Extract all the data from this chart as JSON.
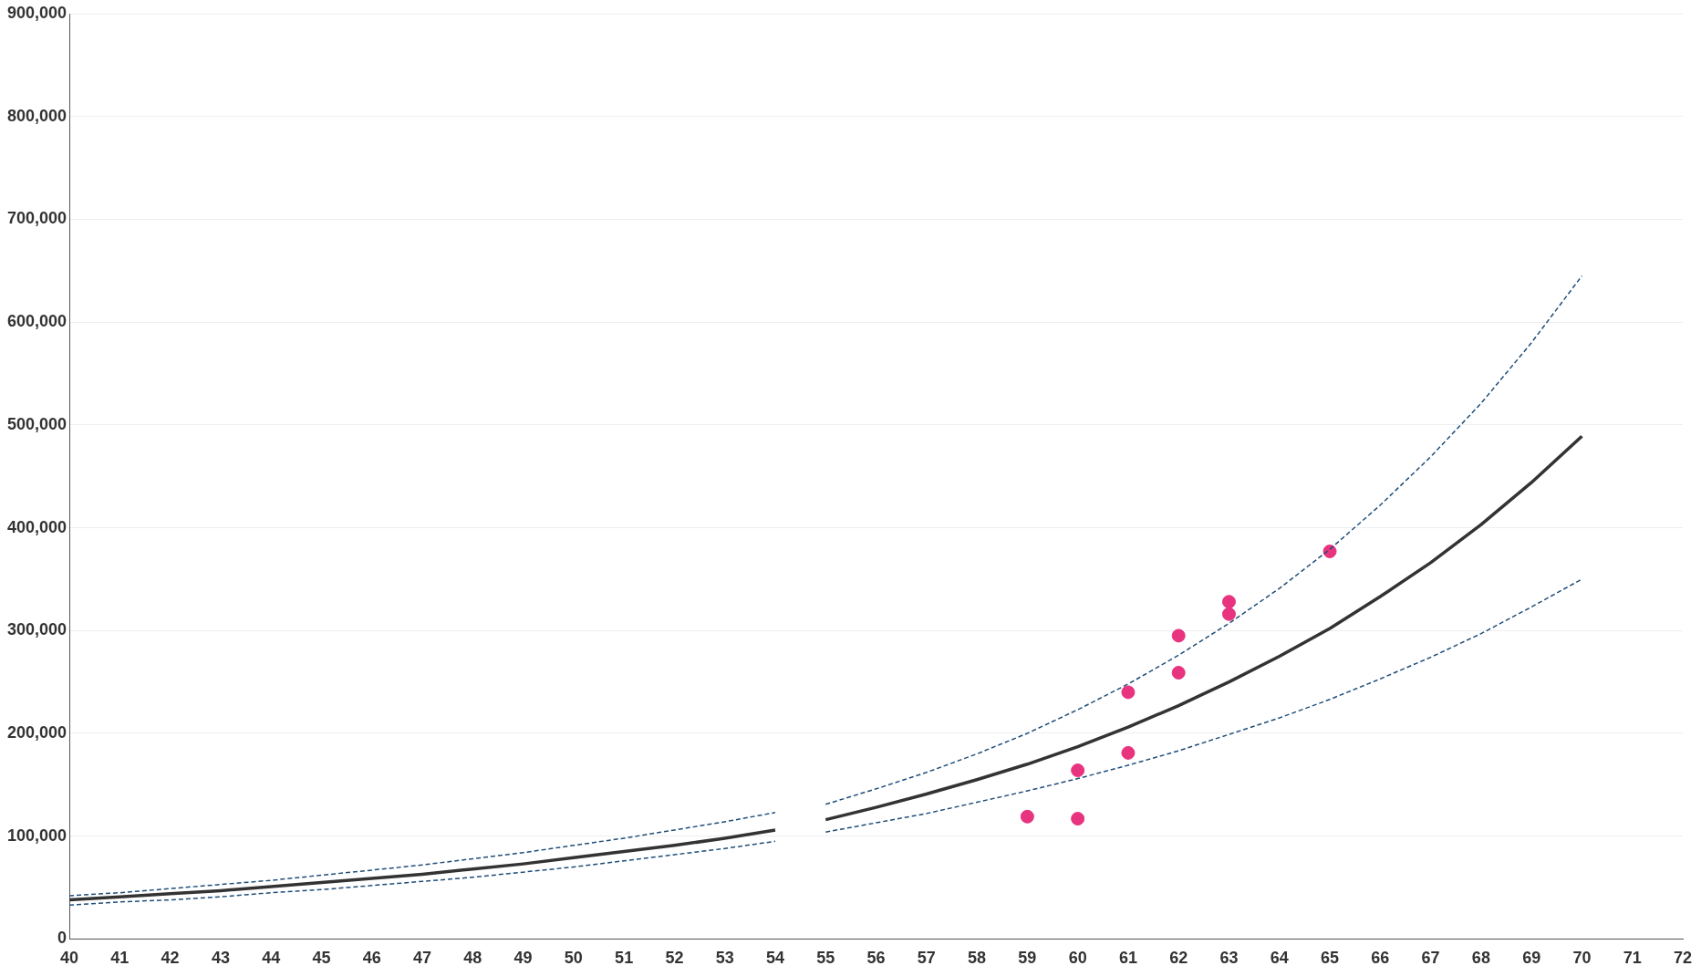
{
  "chart_data": {
    "type": "line",
    "xlim": [
      40,
      72
    ],
    "xticks": [
      40,
      41,
      42,
      43,
      44,
      45,
      46,
      47,
      48,
      49,
      50,
      51,
      52,
      53,
      54,
      55,
      56,
      57,
      58,
      59,
      60,
      61,
      62,
      63,
      64,
      65,
      66,
      67,
      68,
      69,
      70,
      71,
      72
    ],
    "ylim": [
      0,
      900000
    ],
    "yticks": [
      {
        "value": 0,
        "label": "0"
      },
      {
        "value": 100000,
        "label": "100,000"
      },
      {
        "value": 200000,
        "label": "200,000"
      },
      {
        "value": 300000,
        "label": "300,000"
      },
      {
        "value": 400000,
        "label": "400,000"
      },
      {
        "value": 500000,
        "label": "500,000"
      },
      {
        "value": 600000,
        "label": "600,000"
      },
      {
        "value": 700000,
        "label": "700,000"
      },
      {
        "value": 800000,
        "label": "800,000"
      },
      {
        "value": 900000,
        "label": "900,000"
      }
    ],
    "grid": "y",
    "legend": false,
    "marker": "none",
    "series": [
      {
        "type": "line",
        "color": "#1f4e79",
        "line_style": "dashed",
        "x": [
          40,
          41,
          42,
          43,
          44,
          45,
          46,
          47,
          48,
          49,
          50,
          51,
          52,
          53,
          54
        ],
        "values": [
          42000,
          45000,
          49000,
          53000,
          57000,
          62000,
          67000,
          72000,
          78000,
          84000,
          91000,
          98000,
          106000,
          114000,
          123000
        ]
      },
      {
        "type": "line",
        "color": "#1f4e79",
        "line_style": "dashed",
        "x": [
          40,
          41,
          42,
          43,
          44,
          45,
          46,
          47,
          48,
          49,
          50,
          51,
          52,
          53,
          54
        ],
        "values": [
          33000,
          36000,
          38000,
          41000,
          45000,
          48000,
          52000,
          56000,
          60000,
          65000,
          70000,
          76000,
          82000,
          88000,
          95000
        ]
      },
      {
        "type": "line",
        "color": "#333333",
        "line_style": "solid",
        "x": [
          40,
          41,
          42,
          43,
          44,
          45,
          46,
          47,
          48,
          49,
          50,
          51,
          52,
          53,
          54
        ],
        "values": [
          38000,
          41000,
          44000,
          47000,
          51000,
          55000,
          59000,
          63000,
          68000,
          73000,
          79000,
          85000,
          91000,
          98000,
          106000
        ]
      },
      {
        "type": "line",
        "color": "#1f4e79",
        "line_style": "dashed",
        "x": [
          55,
          56,
          57,
          58,
          59,
          60,
          61,
          62,
          63,
          64,
          65,
          66,
          67,
          68,
          69,
          70
        ],
        "values": [
          131000,
          146000,
          162000,
          180000,
          200000,
          223000,
          248000,
          276000,
          307000,
          341000,
          379000,
          422000,
          469000,
          521000,
          580000,
          645000
        ]
      },
      {
        "type": "line",
        "color": "#1f4e79",
        "line_style": "dashed",
        "x": [
          55,
          56,
          57,
          58,
          59,
          60,
          61,
          62,
          63,
          64,
          65,
          66,
          67,
          68,
          69,
          70
        ],
        "values": [
          104000,
          113000,
          122000,
          133000,
          144000,
          156000,
          169000,
          183000,
          199000,
          215000,
          233000,
          253000,
          274000,
          297000,
          323000,
          350000
        ]
      },
      {
        "type": "line",
        "color": "#333333",
        "line_style": "solid",
        "x": [
          55,
          56,
          57,
          58,
          59,
          60,
          61,
          62,
          63,
          64,
          65,
          66,
          67,
          68,
          69,
          70
        ],
        "values": [
          116000,
          128000,
          141000,
          155000,
          170000,
          187000,
          206000,
          227000,
          250000,
          275000,
          302000,
          333000,
          366000,
          403000,
          444000,
          489000
        ]
      },
      {
        "type": "scatter",
        "color": "#e8337f",
        "marker": "circle",
        "x": [
          59,
          60,
          60,
          61,
          61,
          62,
          62,
          63,
          63,
          65
        ],
        "values": [
          119000,
          117000,
          164000,
          181000,
          240000,
          259000,
          295000,
          316000,
          328000,
          377000
        ]
      }
    ]
  }
}
